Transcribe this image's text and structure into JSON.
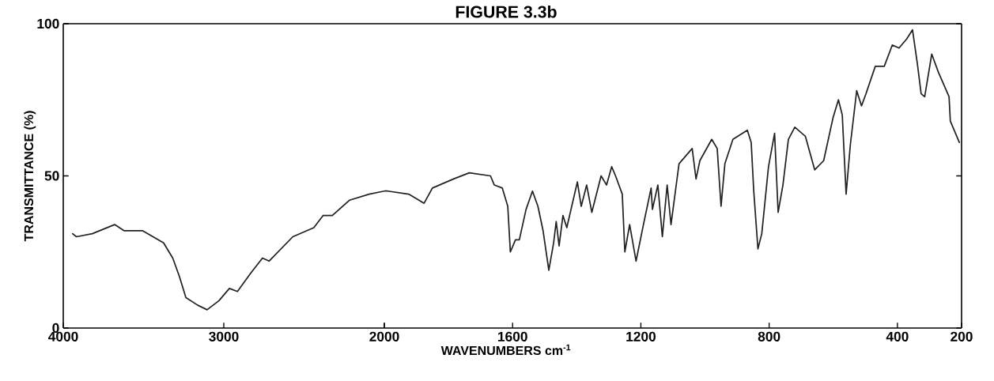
{
  "chart_data": [
    {
      "type": "line",
      "ylabel": "TRANSMITTANCE (%)",
      "x": [
        3942,
        3918,
        3819,
        3680,
        3622,
        3507,
        3375,
        3318,
        3277,
        3236,
        3162,
        3104,
        3030,
        2965,
        2915,
        2833,
        2759,
        2718,
        2570,
        2439,
        2381,
        2324,
        2217,
        2094,
        2000
      ],
      "series": [
        {
          "color": "#222222",
          "values": [
            31,
            30,
            31,
            34,
            32,
            32,
            28,
            23,
            17,
            10,
            7.5,
            6,
            9,
            13,
            12,
            18,
            23,
            22,
            30,
            33,
            37,
            37,
            42,
            44,
            45
          ]
        }
      ],
      "xlim": [
        4000,
        2000
      ],
      "xticks": [
        4000,
        3000,
        2000
      ],
      "ylim": [
        0,
        100
      ],
      "yticks": [
        0,
        50,
        100
      ],
      "grid": false,
      "marker": "none",
      "line_style": "solid"
    },
    {
      "type": "line",
      "title": "FIGURE 3.3b",
      "xlabel": "WAVENUMBERS cm$^{-1}$",
      "x": [
        2000,
        1989,
        1924,
        1876,
        1850,
        1784,
        1735,
        1669,
        1657,
        1632,
        1615,
        1607,
        1591,
        1579,
        1558,
        1538,
        1521,
        1505,
        1487,
        1472,
        1464,
        1455,
        1443,
        1431,
        1398,
        1386,
        1369,
        1353,
        1324,
        1307,
        1291,
        1279,
        1258,
        1250,
        1235,
        1215,
        1192,
        1168,
        1164,
        1147,
        1133,
        1118,
        1106,
        1081,
        1040,
        1028,
        1016,
        979,
        962,
        950,
        938,
        913,
        868,
        856,
        848,
        835,
        823,
        802,
        783,
        772,
        757,
        740,
        720,
        687,
        658,
        630,
        601,
        584,
        572,
        560,
        547,
        527,
        512,
        498,
        469,
        441,
        416,
        395,
        371,
        353,
        338,
        326,
        315,
        293,
        272,
        239,
        235,
        207
      ],
      "series": [
        {
          "color": "#222222",
          "values": [
            45,
            45,
            44,
            41,
            46,
            49,
            51,
            50,
            47,
            46,
            40,
            25,
            29,
            29,
            39,
            45,
            40,
            32,
            19,
            28,
            35,
            27,
            37,
            33,
            48,
            40,
            47,
            38,
            50,
            47,
            53,
            50,
            44,
            25,
            34,
            22,
            34,
            46,
            39,
            47,
            30,
            47,
            34,
            54,
            59,
            49,
            55,
            62,
            59,
            40,
            54,
            62,
            65,
            61,
            45,
            26,
            31,
            53,
            64,
            38,
            47,
            62,
            66,
            63,
            52,
            55,
            69,
            75,
            70,
            44,
            60,
            78,
            73,
            77,
            86,
            86,
            93,
            92,
            95,
            98,
            87,
            77,
            76,
            90,
            84,
            76,
            68,
            61
          ]
        }
      ],
      "xlim": [
        2000,
        200
      ],
      "xticks": [
        {
          "value": 2000,
          "label": null
        },
        1600,
        1200,
        800,
        400,
        200
      ],
      "ylim": [
        0,
        100
      ],
      "yticks": [
        {
          "value": 0,
          "label": null
        },
        {
          "value": 50,
          "label": null
        },
        {
          "value": 100,
          "label": null
        }
      ],
      "tick_labels": "x",
      "grid": false,
      "marker": "none",
      "line_style": "solid"
    }
  ]
}
